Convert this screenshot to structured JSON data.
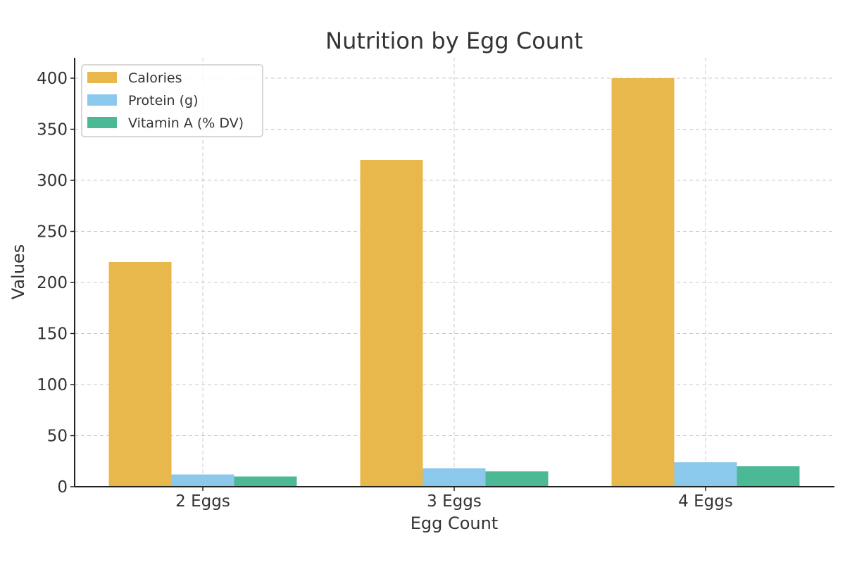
{
  "chart_data": {
    "type": "bar",
    "title": "Nutrition by Egg Count",
    "xlabel": "Egg Count",
    "ylabel": "Values",
    "categories": [
      "2 Eggs",
      "3 Eggs",
      "4 Eggs"
    ],
    "series": [
      {
        "name": "Calories",
        "values": [
          220,
          320,
          400
        ],
        "color": "#E9B84D"
      },
      {
        "name": "Protein (g)",
        "values": [
          12,
          18,
          24
        ],
        "color": "#8AC8EC"
      },
      {
        "name": "Vitamin A (% DV)",
        "values": [
          10,
          15,
          20
        ],
        "color": "#4CB996"
      }
    ],
    "ylim": [
      0,
      420
    ],
    "yticks": [
      0,
      50,
      100,
      150,
      200,
      250,
      300,
      350,
      400
    ],
    "grid": true,
    "legend_position": "top-left"
  }
}
